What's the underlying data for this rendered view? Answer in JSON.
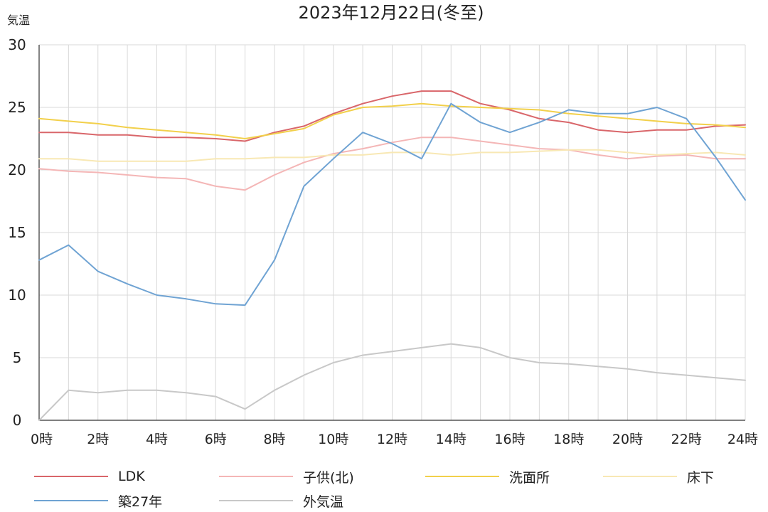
{
  "chart_data": {
    "type": "line",
    "title": "2023年12月22日(冬至)",
    "ylabel": "気温",
    "xlabel": "",
    "ylim": [
      0,
      30
    ],
    "yticks": [
      0,
      5,
      10,
      15,
      20,
      25,
      30
    ],
    "x": [
      0,
      1,
      2,
      3,
      4,
      5,
      6,
      7,
      8,
      9,
      10,
      11,
      12,
      13,
      14,
      15,
      16,
      17,
      18,
      19,
      20,
      21,
      22,
      23,
      24
    ],
    "xtick_labels": [
      "0時",
      "2時",
      "4時",
      "6時",
      "8時",
      "10時",
      "12時",
      "14時",
      "16時",
      "18時",
      "20時",
      "22時",
      "24時"
    ],
    "xtick_values": [
      0,
      2,
      4,
      6,
      8,
      10,
      12,
      14,
      16,
      18,
      20,
      22,
      24
    ],
    "grid": true,
    "legend_position": "bottom",
    "series": [
      {
        "name": "LDK",
        "color": "#d9666a",
        "values": [
          23.0,
          23.0,
          22.8,
          22.8,
          22.6,
          22.6,
          22.5,
          22.3,
          23.0,
          23.5,
          24.5,
          25.3,
          25.9,
          26.3,
          26.3,
          25.3,
          24.8,
          24.1,
          23.8,
          23.2,
          23.0,
          23.2,
          23.2,
          23.5,
          23.6
        ]
      },
      {
        "name": "子供(北)",
        "color": "#f4b6b6",
        "values": [
          20.1,
          19.9,
          19.8,
          19.6,
          19.4,
          19.3,
          18.7,
          18.4,
          19.6,
          20.6,
          21.3,
          21.7,
          22.2,
          22.6,
          22.6,
          22.3,
          22.0,
          21.7,
          21.6,
          21.2,
          20.9,
          21.1,
          21.2,
          20.9,
          20.9
        ]
      },
      {
        "name": "洗面所",
        "color": "#f2d04b",
        "values": [
          24.1,
          23.9,
          23.7,
          23.4,
          23.2,
          23.0,
          22.8,
          22.5,
          22.9,
          23.3,
          24.4,
          25.0,
          25.1,
          25.3,
          25.1,
          25.0,
          24.9,
          24.8,
          24.5,
          24.3,
          24.1,
          23.9,
          23.7,
          23.6,
          23.4
        ]
      },
      {
        "name": "床下",
        "color": "#f8e8b4",
        "values": [
          20.9,
          20.9,
          20.7,
          20.7,
          20.7,
          20.7,
          20.9,
          20.9,
          21.0,
          21.0,
          21.2,
          21.2,
          21.4,
          21.4,
          21.2,
          21.4,
          21.4,
          21.5,
          21.6,
          21.6,
          21.4,
          21.2,
          21.3,
          21.4,
          21.2
        ]
      },
      {
        "name": "築27年",
        "color": "#6fa3d3",
        "values": [
          12.8,
          14.0,
          11.9,
          10.9,
          10.0,
          9.7,
          9.3,
          9.2,
          12.8,
          18.7,
          20.9,
          23.0,
          22.1,
          20.9,
          25.3,
          23.8,
          23.0,
          23.8,
          24.8,
          24.5,
          24.5,
          25.0,
          24.1,
          21.0,
          17.6
        ]
      },
      {
        "name": "外気温",
        "color": "#c8c8c8",
        "values": [
          0.0,
          2.4,
          2.2,
          2.4,
          2.4,
          2.2,
          1.9,
          0.9,
          2.4,
          3.6,
          4.6,
          5.2,
          5.5,
          5.8,
          6.1,
          5.8,
          5.0,
          4.6,
          4.5,
          4.3,
          4.1,
          3.8,
          3.6,
          3.4,
          3.2
        ]
      }
    ]
  }
}
